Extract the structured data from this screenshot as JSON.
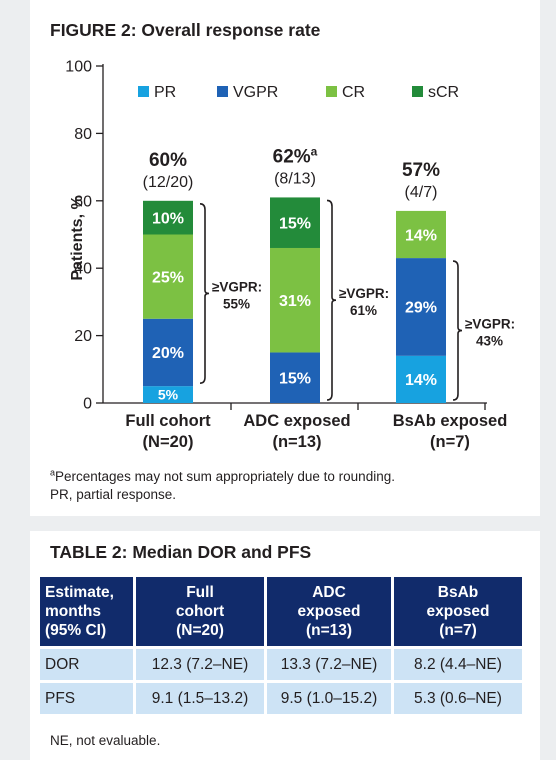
{
  "figure": {
    "title": "FIGURE 2: Overall response rate",
    "footnote_marker": "a",
    "footnote_line1": "Percentages may not sum appropriately due to rounding.",
    "footnote_line2": "PR, partial response."
  },
  "chart_data": {
    "type": "bar",
    "stacked": true,
    "ylabel": "Patients, %",
    "ylim": [
      0,
      100
    ],
    "yticks": [
      0,
      20,
      40,
      60,
      80,
      100
    ],
    "legend_position": "top",
    "categories": [
      {
        "line1": "Full cohort",
        "line2": "(N=20)"
      },
      {
        "line1": "ADC exposed",
        "line2": "(n=13)"
      },
      {
        "line1": "BsAb exposed",
        "line2": "(n=7)"
      }
    ],
    "series": [
      {
        "name": "PR",
        "color": "#17a2e0",
        "values": [
          5,
          0,
          14
        ],
        "labels": [
          "5%",
          "",
          "14%"
        ]
      },
      {
        "name": "VGPR",
        "color": "#1f62b5",
        "values": [
          20,
          15,
          29
        ],
        "labels": [
          "20%",
          "15%",
          "29%"
        ]
      },
      {
        "name": "CR",
        "color": "#7cc143",
        "values": [
          25,
          31,
          14
        ],
        "labels": [
          "25%",
          "31%",
          "14%"
        ]
      },
      {
        "name": "sCR",
        "color": "#238b3a",
        "values": [
          10,
          15,
          0
        ],
        "labels": [
          "10%",
          "15%",
          ""
        ]
      }
    ],
    "totals": [
      {
        "pct": "60%",
        "sup": "",
        "count": "(12/20)"
      },
      {
        "pct": "62%",
        "sup": "a",
        "count": "(8/13)"
      },
      {
        "pct": "57%",
        "sup": "",
        "count": "(4/7)"
      }
    ],
    "vgpr_brackets": [
      {
        "line1": "≥VGPR:",
        "line2": "55%",
        "from": 5,
        "to": 60
      },
      {
        "line1": "≥VGPR:",
        "line2": "61%",
        "from": 0,
        "to": 61
      },
      {
        "line1": "≥VGPR:",
        "line2": "43%",
        "from": 0,
        "to": 43
      }
    ]
  },
  "table": {
    "title": "TABLE 2: Median DOR and PFS",
    "headers": [
      [
        "Estimate,",
        "months",
        "(95% CI)"
      ],
      [
        "Full",
        "cohort",
        "(N=20)"
      ],
      [
        "ADC",
        "exposed",
        "(n=13)"
      ],
      [
        "BsAb",
        "exposed",
        "(n=7)"
      ]
    ],
    "rows": [
      [
        "DOR",
        "12.3 (7.2–NE)",
        "13.3 (7.2–NE)",
        "8.2 (4.4–NE)"
      ],
      [
        "PFS",
        "9.1 (1.5–13.2)",
        "9.5 (1.0–15.2)",
        "5.3 (0.6–NE)"
      ]
    ],
    "footnote": "NE, not evaluable."
  }
}
